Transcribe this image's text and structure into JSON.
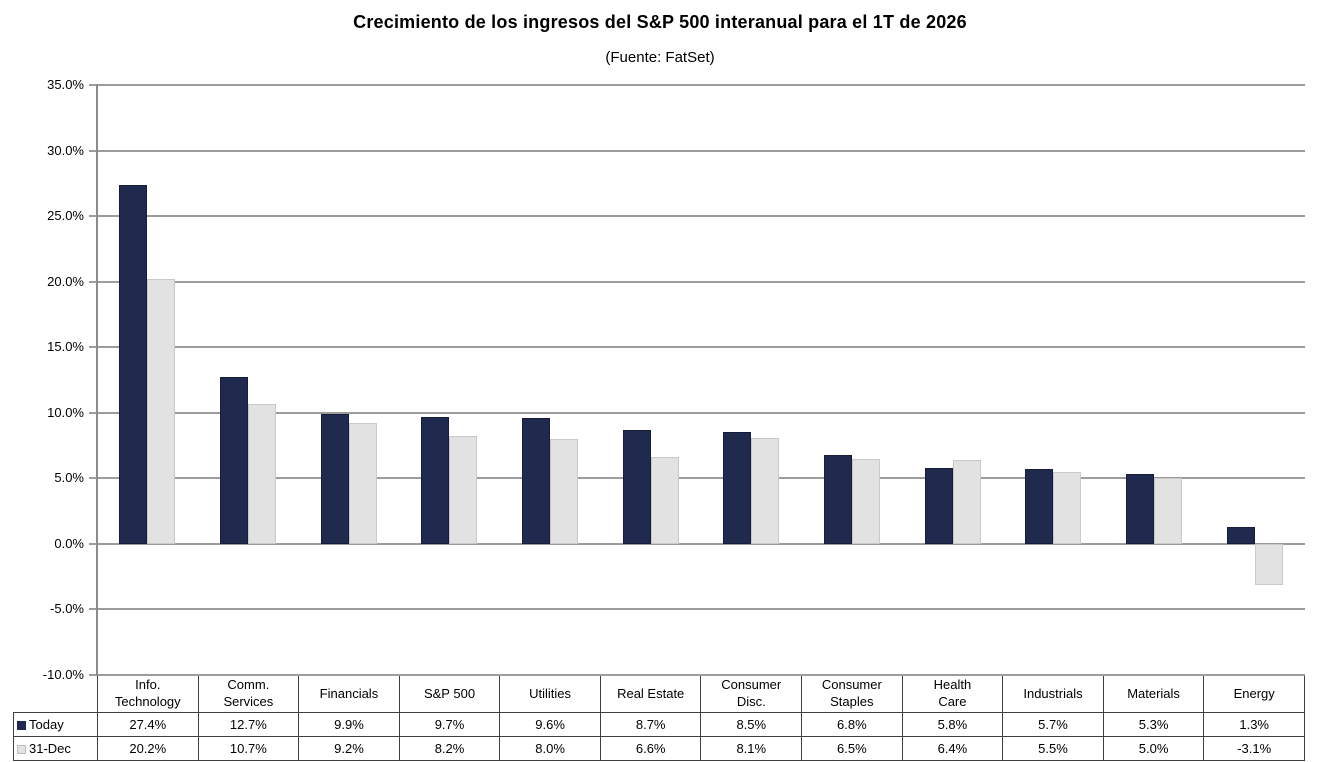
{
  "title": "Crecimiento de los ingresos del S&P 500 interanual para el 1T de 2026",
  "subtitle": "(Fuente: FatSet)",
  "chart_data": {
    "type": "bar",
    "title": "Crecimiento de los ingresos del S&P 500 interanual para el 1T de 2026",
    "subtitle": "(Fuente: FatSet)",
    "categories": [
      "Info. Technology",
      "Comm. Services",
      "Financials",
      "S&P 500",
      "Utilities",
      "Real Estate",
      "Consumer Disc.",
      "Consumer Staples",
      "Health Care",
      "Industrials",
      "Materials",
      "Energy"
    ],
    "header_lines": [
      [
        "Info.",
        "Technology"
      ],
      [
        "Comm.",
        "Services"
      ],
      [
        "Financials"
      ],
      [
        "S&P 500"
      ],
      [
        "Utilities"
      ],
      [
        "Real Estate"
      ],
      [
        "Consumer",
        "Disc."
      ],
      [
        "Consumer",
        "Staples"
      ],
      [
        "Health",
        "Care"
      ],
      [
        "Industrials"
      ],
      [
        "Materials"
      ],
      [
        "Energy"
      ]
    ],
    "series": [
      {
        "name": "Today",
        "color": "#1f2a4e",
        "values": [
          27.4,
          12.7,
          9.9,
          9.7,
          9.6,
          8.7,
          8.5,
          6.8,
          5.8,
          5.7,
          5.3,
          1.3
        ],
        "value_labels": [
          "27.4%",
          "12.7%",
          "9.9%",
          "9.7%",
          "9.6%",
          "8.7%",
          "8.5%",
          "6.8%",
          "5.8%",
          "5.7%",
          "5.3%",
          "1.3%"
        ]
      },
      {
        "name": "31-Dec",
        "color": "#e2e2e2",
        "values": [
          20.2,
          10.7,
          9.2,
          8.2,
          8.0,
          6.6,
          8.1,
          6.5,
          6.4,
          5.5,
          5.0,
          -3.1
        ],
        "value_labels": [
          "20.2%",
          "10.7%",
          "9.2%",
          "8.2%",
          "8.0%",
          "6.6%",
          "8.1%",
          "6.5%",
          "6.4%",
          "5.5%",
          "5.0%",
          "-3.1%"
        ]
      }
    ],
    "ylim": [
      -10,
      35
    ],
    "yticks": [
      35,
      30,
      25,
      20,
      15,
      10,
      5,
      0,
      -5,
      -10
    ],
    "ytick_labels": [
      "35.0%",
      "30.0%",
      "25.0%",
      "20.0%",
      "15.0%",
      "10.0%",
      "5.0%",
      "0.0%",
      "-5.0%",
      "-10.0%"
    ],
    "grid": true,
    "legend_position": "table-left",
    "gridline_color": "#9c9c9c",
    "axis_color": "#8b8b8b"
  }
}
